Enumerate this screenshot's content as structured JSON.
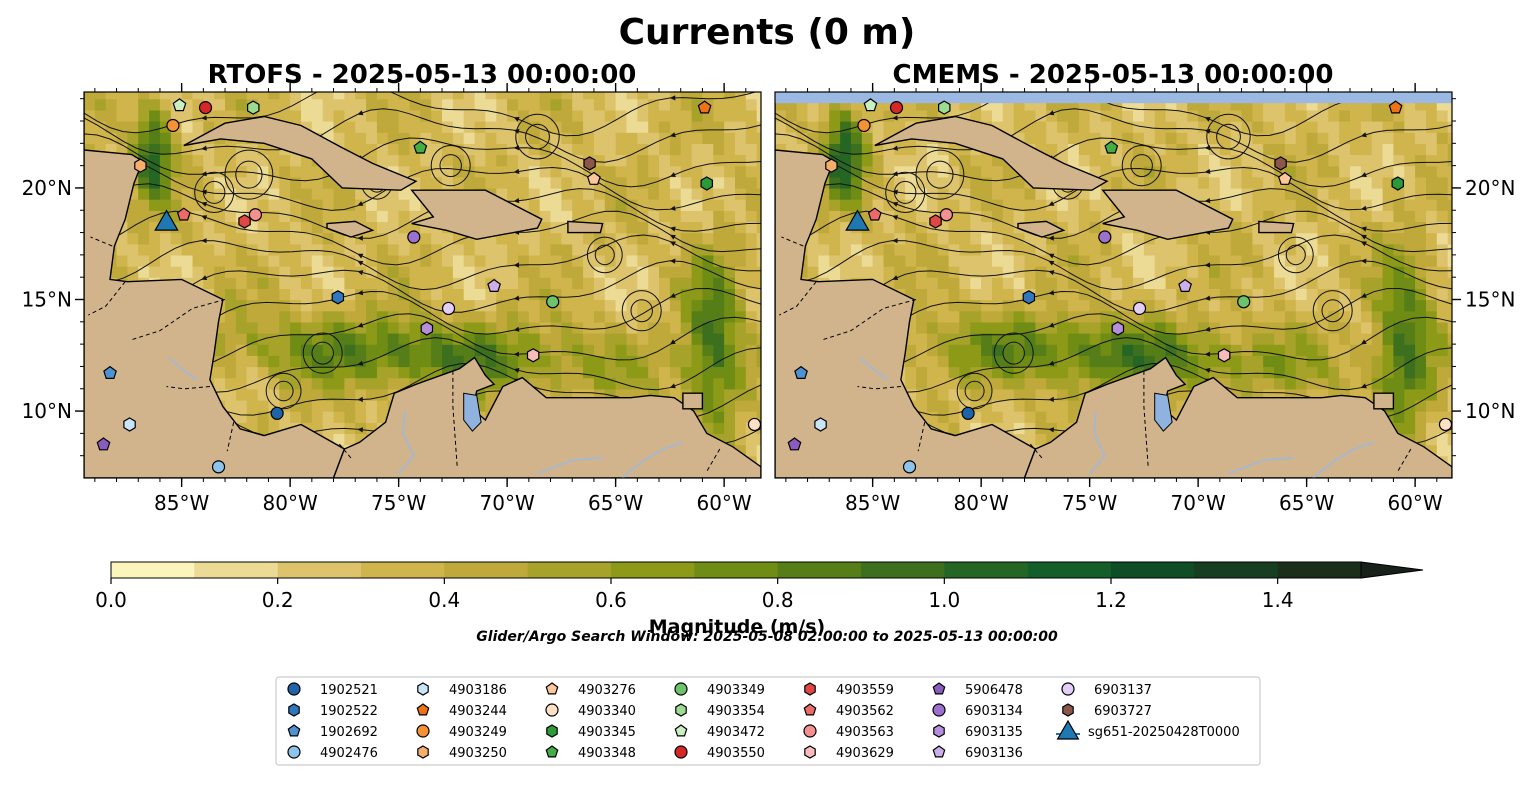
{
  "suptitle": "Currents (0 m)",
  "colors": {
    "land": "#d2b48c",
    "lake": "#8fb3de",
    "missing": "#9bb9e3",
    "river": "#a8b8cc",
    "coast": "#000000"
  },
  "chart_data": [
    {
      "type": "heatmap",
      "title": "RTOFS - 2025-05-13 00:00:00",
      "xlim": [
        -89.5,
        -58.3
      ],
      "ylim": [
        7.0,
        24.3
      ],
      "x_ticks": [
        -85,
        -80,
        -75,
        -70,
        -65,
        -60
      ],
      "y_ticks": [
        10,
        15,
        20
      ],
      "x_tick_labels": [
        "85°W",
        "80°W",
        "75°W",
        "70°W",
        "65°W",
        "60°W"
      ],
      "y_tick_labels": [
        "10°N",
        "15°N",
        "20°N"
      ],
      "y_tick_side": "left"
    },
    {
      "type": "heatmap",
      "title": "CMEMS - 2025-05-13 00:00:00",
      "xlim": [
        -89.5,
        -58.3
      ],
      "ylim": [
        7.0,
        24.3
      ],
      "x_ticks": [
        -85,
        -80,
        -75,
        -70,
        -65,
        -60
      ],
      "y_ticks": [
        10,
        15,
        20
      ],
      "x_tick_labels": [
        "85°W",
        "80°W",
        "75°W",
        "70°W",
        "65°W",
        "60°W"
      ],
      "y_tick_labels": [
        "10°N",
        "15°N",
        "20°N"
      ],
      "y_tick_side": "right",
      "missing_band_top_lat": 23.8
    }
  ],
  "colorbar": {
    "label": "Magnitude (m/s)",
    "min": 0.0,
    "max": 1.5,
    "ticks": [
      0.0,
      0.2,
      0.4,
      0.6,
      0.8,
      1.0,
      1.2,
      1.4
    ],
    "tick_labels": [
      "0.0",
      "0.2",
      "0.4",
      "0.6",
      "0.8",
      "1.0",
      "1.2",
      "1.4"
    ],
    "colors": [
      "#fbf4bd",
      "#ecdb94",
      "#ddc46c",
      "#d0b54c",
      "#bea93a",
      "#a6a22a",
      "#8c9a18",
      "#6f8c14",
      "#557d18",
      "#3c701f",
      "#266624",
      "#145e2a",
      "#0f4d25",
      "#163e20",
      "#1b2e1a",
      "#17211a"
    ],
    "extend": "max"
  },
  "search_window": "Glider/Argo Search Window: 2025-05-08 02:00:00 to 2025-05-13 00:00:00",
  "legend": {
    "placement": "lower-center",
    "items": [
      {
        "label": "1902521",
        "marker": "circle",
        "color": "#1f63a8"
      },
      {
        "label": "1902522",
        "marker": "hexagon",
        "color": "#2f78c0"
      },
      {
        "label": "1902692",
        "marker": "pentagon",
        "color": "#4f92d2"
      },
      {
        "label": "4902476",
        "marker": "circle",
        "color": "#8ec3ea"
      },
      {
        "label": "4903186",
        "marker": "hexagon",
        "color": "#c9e3f7"
      },
      {
        "label": "4903244",
        "marker": "pentagon",
        "color": "#ee7318"
      },
      {
        "label": "4903249",
        "marker": "circle",
        "color": "#f59235"
      },
      {
        "label": "4903250",
        "marker": "hexagon",
        "color": "#f8ae6b"
      },
      {
        "label": "4903276",
        "marker": "pentagon",
        "color": "#fbc79b"
      },
      {
        "label": "4903340",
        "marker": "circle",
        "color": "#fde0c5"
      },
      {
        "label": "4903345",
        "marker": "hexagon",
        "color": "#2c9a38"
      },
      {
        "label": "4903348",
        "marker": "pentagon",
        "color": "#43ad46"
      },
      {
        "label": "4903349",
        "marker": "circle",
        "color": "#6cc36c"
      },
      {
        "label": "4903354",
        "marker": "hexagon",
        "color": "#9bdc91"
      },
      {
        "label": "4903472",
        "marker": "pentagon",
        "color": "#caefc0"
      },
      {
        "label": "4903550",
        "marker": "circle",
        "color": "#d62728"
      },
      {
        "label": "4903559",
        "marker": "hexagon",
        "color": "#e04646"
      },
      {
        "label": "4903562",
        "marker": "pentagon",
        "color": "#ec6a6a"
      },
      {
        "label": "4903563",
        "marker": "circle",
        "color": "#f39191"
      },
      {
        "label": "4903629",
        "marker": "hexagon",
        "color": "#f9bcbc"
      },
      {
        "label": "5906478",
        "marker": "pentagon",
        "color": "#8a5cc0"
      },
      {
        "label": "6903134",
        "marker": "circle",
        "color": "#9c70cf"
      },
      {
        "label": "6903135",
        "marker": "hexagon",
        "color": "#b58fdc"
      },
      {
        "label": "6903136",
        "marker": "pentagon",
        "color": "#ccaeea"
      },
      {
        "label": "6903137",
        "marker": "circle",
        "color": "#e2cef6"
      },
      {
        "label": "6903727",
        "marker": "hexagon",
        "color": "#8c564b"
      },
      {
        "label": "sg651-20250428T0000",
        "marker": "triangle",
        "color": "#1f77b4"
      }
    ]
  },
  "markers": [
    {
      "id": "1902521",
      "lon": -80.6,
      "lat": 9.9
    },
    {
      "id": "1902522",
      "lon": -77.8,
      "lat": 15.1
    },
    {
      "id": "1902692",
      "lon": -88.3,
      "lat": 11.7
    },
    {
      "id": "4902476",
      "lon": -83.3,
      "lat": 7.5
    },
    {
      "id": "4903186",
      "lon": -87.4,
      "lat": 9.4
    },
    {
      "id": "4903244",
      "lon": -60.9,
      "lat": 23.6
    },
    {
      "id": "4903249",
      "lon": -85.4,
      "lat": 22.8
    },
    {
      "id": "4903250",
      "lon": -86.9,
      "lat": 21.0
    },
    {
      "id": "4903276",
      "lon": -66.0,
      "lat": 20.4
    },
    {
      "id": "4903340",
      "lon": -58.6,
      "lat": 9.4
    },
    {
      "id": "4903345",
      "lon": -60.8,
      "lat": 20.2
    },
    {
      "id": "4903348",
      "lon": -74.0,
      "lat": 21.8
    },
    {
      "id": "4903349",
      "lon": -67.9,
      "lat": 14.9
    },
    {
      "id": "4903354",
      "lon": -81.7,
      "lat": 23.6
    },
    {
      "id": "4903472",
      "lon": -85.1,
      "lat": 23.7
    },
    {
      "id": "4903550",
      "lon": -83.9,
      "lat": 23.6
    },
    {
      "id": "4903559",
      "lon": -82.1,
      "lat": 18.5
    },
    {
      "id": "4903562",
      "lon": -84.9,
      "lat": 18.8
    },
    {
      "id": "4903563",
      "lon": -81.6,
      "lat": 18.8
    },
    {
      "id": "4903629",
      "lon": -68.8,
      "lat": 12.5
    },
    {
      "id": "5906478",
      "lon": -88.6,
      "lat": 8.5
    },
    {
      "id": "6903134",
      "lon": -74.3,
      "lat": 17.8
    },
    {
      "id": "6903135",
      "lon": -73.7,
      "lat": 13.7
    },
    {
      "id": "6903136",
      "lon": -70.6,
      "lat": 15.6
    },
    {
      "id": "6903137",
      "lon": -72.7,
      "lat": 14.6
    },
    {
      "id": "6903727",
      "lon": -66.2,
      "lat": 21.1
    },
    {
      "id": "sg651-20250428T0000",
      "lon": -85.7,
      "lat": 18.4
    }
  ]
}
